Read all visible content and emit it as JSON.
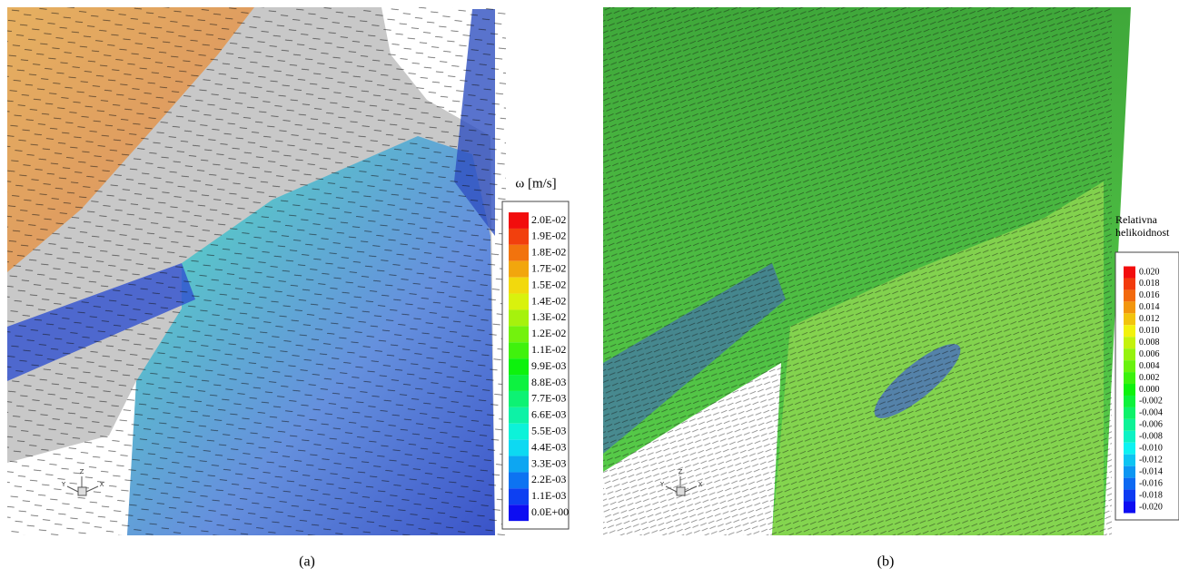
{
  "panels": [
    {
      "caption": "(a)",
      "legend_title": "ω [m/s]",
      "legend_labels": [
        "2.0E-02",
        "1.9E-02",
        "1.8E-02",
        "1.7E-02",
        "1.5E-02",
        "1.4E-02",
        "1.3E-02",
        "1.2E-02",
        "1.1E-02",
        "9.9E-03",
        "8.8E-03",
        "7.7E-03",
        "6.6E-03",
        "5.5E-03",
        "4.4E-03",
        "3.3E-03",
        "2.2E-03",
        "1.1E-03",
        "0.0E+00"
      ],
      "axes": [
        "Y",
        "Z",
        "X"
      ]
    },
    {
      "caption": "(b)",
      "legend_title": [
        "Relativna",
        "helikoidnost"
      ],
      "legend_labels": [
        "0.020",
        "0.018",
        "0.016",
        "0.014",
        "0.012",
        "0.010",
        "0.008",
        "0.006",
        "0.004",
        "0.002",
        "0.000",
        "-0.002",
        "-0.004",
        "-0.006",
        "-0.008",
        "-0.010",
        "-0.012",
        "-0.014",
        "-0.016",
        "-0.018",
        "-0.020"
      ],
      "axes": [
        "Y",
        "Z",
        "X"
      ]
    }
  ]
}
